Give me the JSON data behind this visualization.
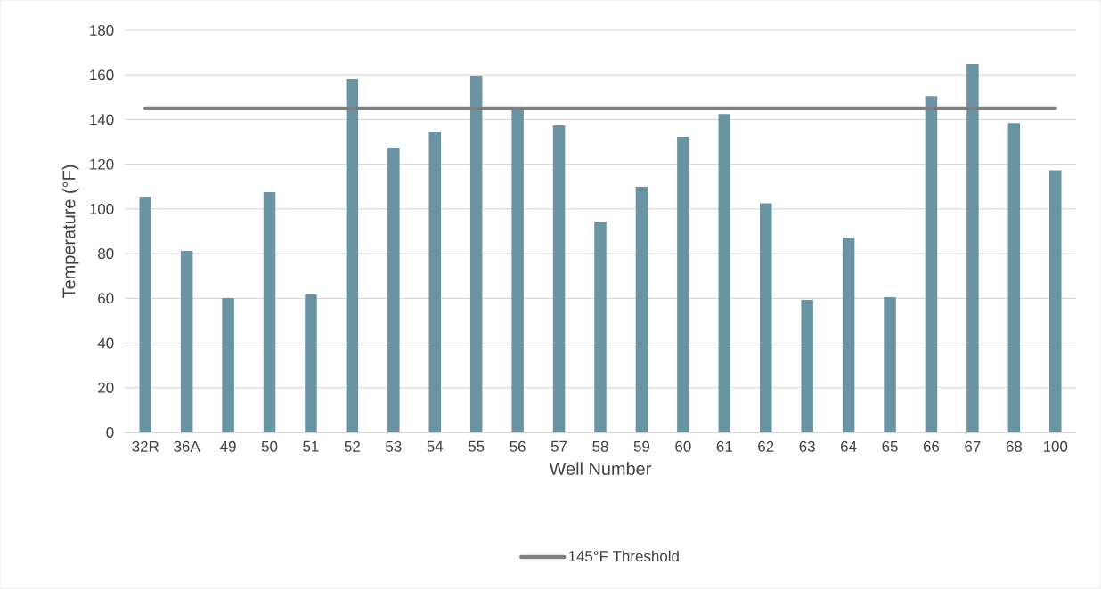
{
  "chart_data": {
    "type": "bar",
    "xlabel": "Well Number",
    "ylabel": "Temperature (°F)",
    "categories": [
      "32R",
      "36A",
      "49",
      "50",
      "51",
      "52",
      "53",
      "54",
      "55",
      "56",
      "57",
      "58",
      "59",
      "60",
      "61",
      "62",
      "63",
      "64",
      "65",
      "66",
      "67",
      "68",
      "100"
    ],
    "series": [
      {
        "color": "#6a93a3",
        "values": [
          105.5,
          81.2,
          60.1,
          107.5,
          61.7,
          158.1,
          127.4,
          134.6,
          159.7,
          145,
          137.4,
          94.4,
          109.9,
          132.2,
          142.5,
          102.5,
          59.3,
          87.1,
          60.5,
          150.4,
          164.9,
          138.5,
          117.3
        ]
      },
      {
        "type": "line",
        "name": "145°F Threshold",
        "color": "#7f7f7f",
        "values": [
          145,
          145,
          145,
          145,
          145,
          145,
          145,
          145,
          145,
          145,
          145,
          145,
          145,
          145,
          145,
          145,
          145,
          145,
          145,
          145,
          145,
          145,
          145
        ]
      }
    ],
    "ylim": [
      0,
      180
    ],
    "yticks": [
      0,
      20,
      40,
      60,
      80,
      100,
      120,
      140,
      160,
      180
    ],
    "grid": "y",
    "legend": "bottom"
  }
}
